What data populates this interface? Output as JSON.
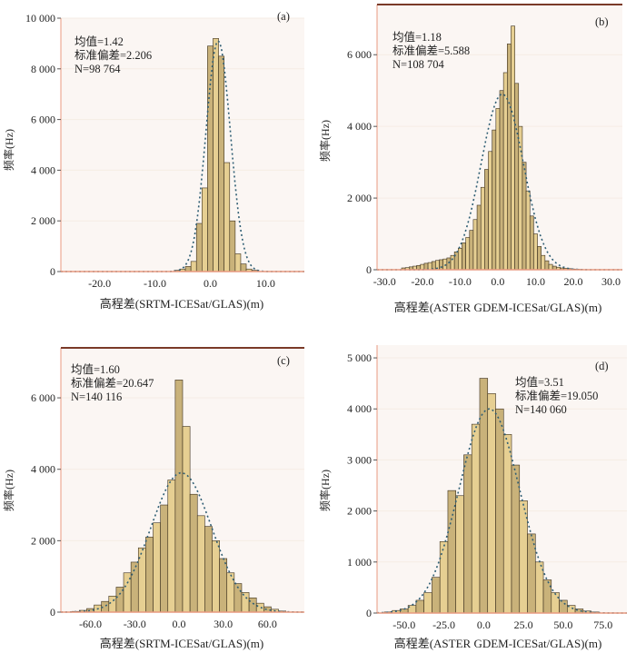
{
  "chart_data": [
    {
      "type": "bar",
      "panel": "(a)",
      "xlabel": "高程差(SRTM-ICESat/GLAS)(m)",
      "ylabel": "频率(Hz)",
      "xlim": [
        -27,
        17
      ],
      "ylim": [
        0,
        10000
      ],
      "xticks": [
        -20,
        -10,
        0,
        10
      ],
      "xtick_labels": [
        "-20.0",
        "-10.0",
        "0.0",
        "10.0"
      ],
      "yticks": [
        0,
        2000,
        4000,
        6000,
        8000,
        10000
      ],
      "ytick_labels": [
        "0",
        "2 000",
        "4 000",
        "6 000",
        "8 000",
        "10 000"
      ],
      "stats": [
        "均值=1.42",
        "标准偏差=2.206",
        "N=98 764"
      ],
      "bin_width": 1,
      "x": [
        -6,
        -5,
        -4,
        -3,
        -2,
        -1,
        0,
        1,
        2,
        3,
        4,
        5,
        6,
        7,
        8
      ],
      "values": [
        50,
        100,
        200,
        400,
        1900,
        3300,
        8900,
        9200,
        8500,
        4300,
        2000,
        700,
        300,
        100,
        50
      ],
      "normal_fit": {
        "mean": 1.42,
        "sd": 2.206,
        "peak": 9100
      }
    },
    {
      "type": "bar",
      "panel": "(b)",
      "xlabel": "高程差(ASTER GDEM-ICESat/GLAS)(m)",
      "ylabel": "频率(Hz)",
      "xlim": [
        -32,
        33
      ],
      "ylim": [
        0,
        7400
      ],
      "xticks": [
        -30,
        -20,
        -10,
        0,
        10,
        20,
        30
      ],
      "xtick_labels": [
        "-30.0",
        "-20.0",
        "-10.0",
        "0.0",
        "10.0",
        "20.0",
        "30.0"
      ],
      "yticks": [
        0,
        2000,
        4000,
        6000
      ],
      "ytick_labels": [
        "0",
        "2 000",
        "4 000",
        "6 000"
      ],
      "stats": [
        "均值=1.18",
        "标准偏差=5.588",
        "N=108 704"
      ],
      "bin_width": 1,
      "x": [
        -25,
        -24,
        -23,
        -22,
        -21,
        -20,
        -19,
        -18,
        -17,
        -16,
        -15,
        -14,
        -13,
        -12,
        -11,
        -10,
        -9,
        -8,
        -7,
        -6,
        -5,
        -4,
        -3,
        -2,
        -1,
        0,
        1,
        2,
        3,
        4,
        5,
        6,
        7,
        8,
        9,
        10,
        11,
        12,
        13,
        14,
        15,
        16,
        17,
        18,
        19,
        20,
        21,
        22,
        23
      ],
      "values": [
        50,
        60,
        80,
        100,
        120,
        150,
        180,
        200,
        230,
        260,
        280,
        300,
        330,
        400,
        500,
        600,
        750,
        900,
        1100,
        1400,
        1800,
        2300,
        2800,
        3300,
        3900,
        4500,
        5000,
        5500,
        6300,
        6800,
        5200,
        4000,
        3000,
        2200,
        1500,
        1000,
        650,
        400,
        250,
        150,
        100,
        70,
        50,
        40,
        30,
        20,
        15,
        10,
        5
      ],
      "normal_fit": {
        "mean": 1.18,
        "sd": 5.588,
        "peak": 4900
      }
    },
    {
      "type": "bar",
      "panel": "(c)",
      "xlabel": "高程差(SRTM-ICESat/GLAS)(m)",
      "ylabel": "频率(Hz)",
      "xlim": [
        -80,
        85
      ],
      "ylim": [
        0,
        7400
      ],
      "xticks": [
        -60,
        -30,
        0,
        30,
        60
      ],
      "xtick_labels": [
        "-60.0",
        "-30.0",
        "0.0",
        "30.0",
        "60.0"
      ],
      "yticks": [
        0,
        2000,
        4000,
        6000
      ],
      "ytick_labels": [
        "0",
        "2 000",
        "4 000",
        "6 000"
      ],
      "stats": [
        "均值=1.60",
        "标准偏差=20.647",
        "N=140 116"
      ],
      "bin_width": 5,
      "x": [
        -70,
        -65,
        -60,
        -55,
        -50,
        -45,
        -40,
        -35,
        -30,
        -25,
        -20,
        -15,
        -10,
        -5,
        0,
        5,
        10,
        15,
        20,
        25,
        30,
        35,
        40,
        45,
        50,
        55,
        60,
        65,
        70
      ],
      "values": [
        20,
        50,
        100,
        200,
        300,
        450,
        700,
        1100,
        1400,
        1800,
        2100,
        2500,
        3000,
        3700,
        6500,
        5200,
        3300,
        2700,
        2400,
        2000,
        1500,
        1100,
        800,
        550,
        400,
        250,
        150,
        80,
        30
      ],
      "normal_fit": {
        "mean": 1.6,
        "sd": 20.647,
        "peak": 3900
      }
    },
    {
      "type": "bar",
      "panel": "(d)",
      "xlabel": "高程差(ASTER GDEM-ICESat/GLAS)(m)",
      "ylabel": "频率(Hz)",
      "xlim": [
        -67,
        90
      ],
      "ylim": [
        0,
        5250
      ],
      "xticks": [
        -50,
        -25,
        0,
        25,
        50,
        75
      ],
      "xtick_labels": [
        "-50.0",
        "-25.0",
        "0.0",
        "25.0",
        "50.0",
        "75.0"
      ],
      "yticks": [
        0,
        1000,
        2000,
        3000,
        4000,
        5000
      ],
      "ytick_labels": [
        "0",
        "1 000",
        "2 000",
        "3 000",
        "4 000",
        "5 000"
      ],
      "stats": [
        "均值=3.51",
        "标准偏差=19.050",
        "N=140 060"
      ],
      "bin_width": 5,
      "x": [
        -60,
        -55,
        -50,
        -45,
        -40,
        -35,
        -30,
        -25,
        -20,
        -15,
        -10,
        -5,
        0,
        5,
        10,
        15,
        20,
        25,
        30,
        35,
        40,
        45,
        50,
        55,
        60,
        65,
        70
      ],
      "values": [
        20,
        50,
        80,
        150,
        250,
        400,
        700,
        1400,
        2400,
        2300,
        3100,
        3700,
        4600,
        4300,
        4000,
        3500,
        2900,
        2200,
        1550,
        1000,
        650,
        400,
        250,
        150,
        80,
        40,
        20
      ],
      "normal_fit": {
        "mean": 3.51,
        "sd": 19.05,
        "peak": 4000
      }
    }
  ]
}
